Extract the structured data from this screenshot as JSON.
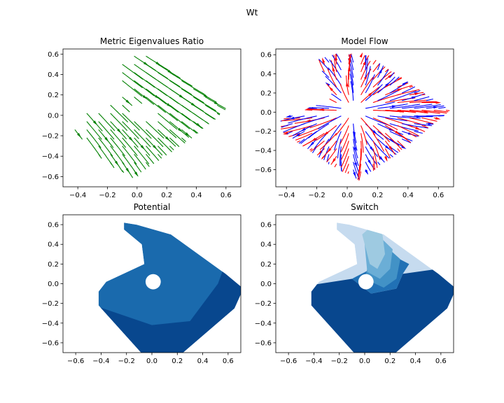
{
  "figure": {
    "suptitle": "Wt"
  },
  "chart_data": [
    {
      "type": "streamplot",
      "title": "Metric Eigenvalues Ratio",
      "xlabel": "",
      "ylabel": "",
      "xlim": [
        -0.5,
        0.7
      ],
      "ylim": [
        -0.7,
        0.65
      ],
      "xticks": [
        -0.4,
        -0.2,
        0.0,
        0.2,
        0.4,
        0.6
      ],
      "yticks": [
        -0.6,
        -0.4,
        -0.2,
        0.0,
        0.2,
        0.4,
        0.6
      ],
      "grid": false,
      "colors": [
        "#008000"
      ],
      "region": {
        "vertices": [
          [
            -0.15,
            0.52
          ],
          [
            -0.06,
            0.62
          ],
          [
            0.12,
            0.6
          ],
          [
            0.62,
            0.08
          ],
          [
            0.55,
            -0.02
          ],
          [
            0.38,
            -0.22
          ],
          [
            0.12,
            -0.48
          ],
          [
            -0.02,
            -0.62
          ],
          [
            -0.2,
            -0.48
          ],
          [
            -0.45,
            -0.12
          ],
          [
            -0.38,
            0.0
          ],
          [
            -0.08,
            0.2
          ],
          [
            -0.12,
            0.38
          ]
        ],
        "hole": [
          0.02,
          0.04,
          0.07
        ]
      }
    },
    {
      "type": "streamplot",
      "title": "Model Flow",
      "xlabel": "",
      "ylabel": "",
      "xlim": [
        -0.47,
        0.7
      ],
      "ylim": [
        -0.78,
        0.66
      ],
      "xticks": [
        -0.4,
        -0.2,
        0.0,
        0.2,
        0.4,
        0.6
      ],
      "yticks": [
        -0.6,
        -0.4,
        -0.2,
        0.0,
        0.2,
        0.4,
        0.6
      ],
      "grid": false,
      "series": [
        {
          "color": "#ff0000"
        },
        {
          "color": "#0000ff"
        }
      ],
      "region": {
        "vertices": [
          [
            -0.2,
            0.55
          ],
          [
            -0.06,
            0.62
          ],
          [
            0.14,
            0.6
          ],
          [
            0.68,
            0.02
          ],
          [
            0.58,
            -0.12
          ],
          [
            0.32,
            -0.45
          ],
          [
            0.08,
            -0.72
          ],
          [
            -0.12,
            -0.55
          ],
          [
            -0.44,
            -0.2
          ],
          [
            -0.44,
            -0.08
          ],
          [
            -0.1,
            0.15
          ],
          [
            -0.16,
            0.4
          ]
        ],
        "hole": [
          0.04,
          0.02,
          0.07
        ]
      }
    },
    {
      "type": "contourf",
      "title": "Potential",
      "xlabel": "",
      "ylabel": "",
      "xlim": [
        -0.7,
        0.7
      ],
      "ylim": [
        -0.7,
        0.7
      ],
      "xticks": [
        -0.6,
        -0.4,
        -0.2,
        0.0,
        0.2,
        0.4,
        0.6
      ],
      "yticks": [
        -0.6,
        -0.4,
        -0.2,
        0.0,
        0.2,
        0.4,
        0.6
      ],
      "grid": false,
      "colors": [
        "#1a6aad",
        "#08478e"
      ],
      "region": {
        "vertices": [
          [
            -0.22,
            0.62
          ],
          [
            -0.12,
            0.6
          ],
          [
            0.15,
            0.5
          ],
          [
            0.58,
            0.1
          ],
          [
            0.72,
            -0.05
          ],
          [
            0.65,
            -0.25
          ],
          [
            0.2,
            -0.75
          ],
          [
            -0.05,
            -0.75
          ],
          [
            -0.42,
            -0.22
          ],
          [
            -0.42,
            -0.08
          ],
          [
            -0.36,
            0.02
          ],
          [
            -0.06,
            0.2
          ],
          [
            -0.08,
            0.4
          ],
          [
            -0.22,
            0.55
          ]
        ],
        "hole": [
          0.01,
          0.02,
          0.06
        ]
      }
    },
    {
      "type": "contourf",
      "title": "Switch",
      "xlabel": "",
      "ylabel": "",
      "xlim": [
        -0.7,
        0.7
      ],
      "ylim": [
        -0.7,
        0.7
      ],
      "xticks": [
        -0.6,
        -0.4,
        -0.2,
        0.0,
        0.2,
        0.4,
        0.6
      ],
      "yticks": [
        -0.6,
        -0.4,
        -0.2,
        0.0,
        0.2,
        0.4,
        0.6
      ],
      "grid": false,
      "colors": [
        "#c6dbef",
        "#9ecae1",
        "#6baed6",
        "#4292c6",
        "#2171b5",
        "#08478e"
      ],
      "region": {
        "vertices": [
          [
            -0.22,
            0.62
          ],
          [
            -0.12,
            0.6
          ],
          [
            0.15,
            0.5
          ],
          [
            0.58,
            0.1
          ],
          [
            0.72,
            -0.05
          ],
          [
            0.65,
            -0.25
          ],
          [
            0.2,
            -0.75
          ],
          [
            -0.05,
            -0.75
          ],
          [
            -0.42,
            -0.22
          ],
          [
            -0.42,
            -0.08
          ],
          [
            -0.36,
            0.02
          ],
          [
            -0.06,
            0.2
          ],
          [
            -0.08,
            0.4
          ],
          [
            -0.22,
            0.55
          ]
        ],
        "hole": [
          0.01,
          0.02,
          0.06
        ]
      }
    }
  ]
}
